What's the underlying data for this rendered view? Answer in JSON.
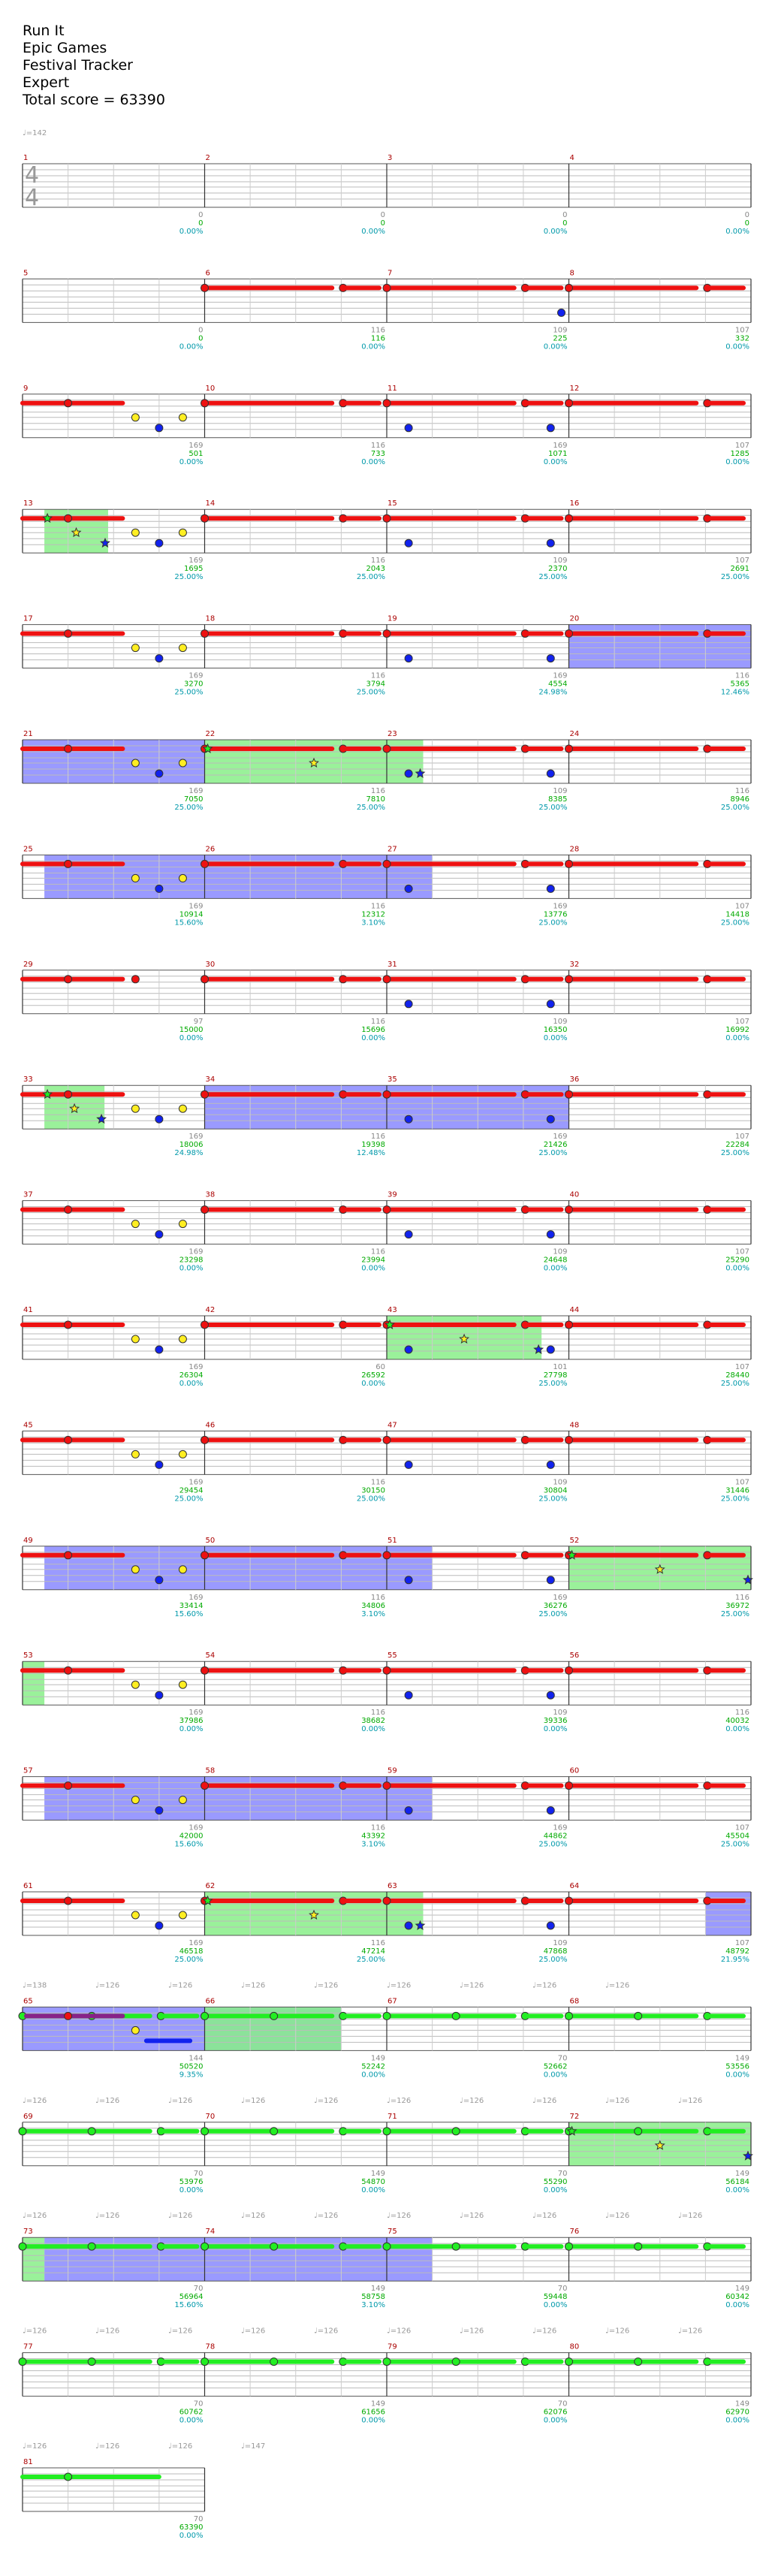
{
  "header": {
    "song": "Run It",
    "artist": "Epic Games",
    "app": "Festival Tracker",
    "difficulty": "Expert",
    "total_score": "Total score = 63390"
  },
  "initial_tempo": "♩=142",
  "time_signature": {
    "top": "4",
    "bottom": "4"
  },
  "colors": {
    "lane_red": "#ee1111",
    "lane_green": "#22ee22",
    "note_yellow": "#ffee22",
    "note_blue": "#1122ee",
    "overdrive_fill": "#88ee88",
    "solo_fill": "#8888ff",
    "measure_number": "#aa0000",
    "score_text": "#00aa00",
    "percent_text": "#0099aa",
    "tempo_text": "#999999"
  },
  "rows": [
    {
      "measures": [
        "1",
        "2",
        "3",
        "4"
      ],
      "notes": [
        "0",
        "0",
        "0",
        "0"
      ],
      "scores": [
        "0",
        "0",
        "0",
        "0"
      ],
      "pcts": [
        "0.00%",
        "0.00%",
        "0.00%",
        "0.00%"
      ]
    },
    {
      "measures": [
        "5",
        "6",
        "7",
        "8"
      ],
      "notes": [
        "0",
        "116",
        "109",
        "107"
      ],
      "scores": [
        "0",
        "116",
        "225",
        "332"
      ],
      "pcts": [
        "0.00%",
        "0.00%",
        "0.00%",
        "0.00%"
      ]
    },
    {
      "measures": [
        "9",
        "10",
        "11",
        "12"
      ],
      "notes": [
        "169",
        "116",
        "169",
        "107"
      ],
      "scores": [
        "501",
        "733",
        "1071",
        "1285"
      ],
      "pcts": [
        "0.00%",
        "0.00%",
        "0.00%",
        "0.00%"
      ]
    },
    {
      "measures": [
        "13",
        "14",
        "15",
        "16"
      ],
      "notes": [
        "169",
        "116",
        "109",
        "107"
      ],
      "scores": [
        "1695",
        "2043",
        "2370",
        "2691"
      ],
      "pcts": [
        "25.00%",
        "25.00%",
        "25.00%",
        "25.00%"
      ]
    },
    {
      "measures": [
        "17",
        "18",
        "19",
        "20"
      ],
      "notes": [
        "169",
        "116",
        "169",
        "116"
      ],
      "scores": [
        "3270",
        "3794",
        "4554",
        "5365"
      ],
      "pcts": [
        "25.00%",
        "25.00%",
        "24.98%",
        "12.46%"
      ]
    },
    {
      "measures": [
        "21",
        "22",
        "23",
        "24"
      ],
      "notes": [
        "169",
        "116",
        "109",
        "116"
      ],
      "scores": [
        "7050",
        "7810",
        "8385",
        "8946"
      ],
      "pcts": [
        "25.00%",
        "25.00%",
        "25.00%",
        "25.00%"
      ]
    },
    {
      "measures": [
        "25",
        "26",
        "27",
        "28"
      ],
      "notes": [
        "169",
        "116",
        "169",
        "107"
      ],
      "scores": [
        "10914",
        "12312",
        "13776",
        "14418"
      ],
      "pcts": [
        "15.60%",
        "3.10%",
        "25.00%",
        "25.00%"
      ]
    },
    {
      "measures": [
        "29",
        "30",
        "31",
        "32"
      ],
      "notes": [
        "97",
        "116",
        "109",
        "107"
      ],
      "scores": [
        "15000",
        "15696",
        "16350",
        "16992"
      ],
      "pcts": [
        "0.00%",
        "0.00%",
        "0.00%",
        "0.00%"
      ]
    },
    {
      "measures": [
        "33",
        "34",
        "35",
        "36"
      ],
      "notes": [
        "169",
        "116",
        "169",
        "107"
      ],
      "scores": [
        "18006",
        "19398",
        "21426",
        "22284"
      ],
      "pcts": [
        "24.98%",
        "12.48%",
        "25.00%",
        "25.00%"
      ]
    },
    {
      "measures": [
        "37",
        "38",
        "39",
        "40"
      ],
      "notes": [
        "169",
        "116",
        "109",
        "107"
      ],
      "scores": [
        "23298",
        "23994",
        "24648",
        "25290"
      ],
      "pcts": [
        "0.00%",
        "0.00%",
        "0.00%",
        "0.00%"
      ]
    },
    {
      "measures": [
        "41",
        "42",
        "43",
        "44"
      ],
      "notes": [
        "169",
        "60",
        "101",
        "107"
      ],
      "scores": [
        "26304",
        "26592",
        "27798",
        "28440"
      ],
      "pcts": [
        "0.00%",
        "0.00%",
        "25.00%",
        "25.00%"
      ]
    },
    {
      "measures": [
        "45",
        "46",
        "47",
        "48"
      ],
      "notes": [
        "169",
        "116",
        "109",
        "107"
      ],
      "scores": [
        "29454",
        "30150",
        "30804",
        "31446"
      ],
      "pcts": [
        "25.00%",
        "25.00%",
        "25.00%",
        "25.00%"
      ]
    },
    {
      "measures": [
        "49",
        "50",
        "51",
        "52"
      ],
      "notes": [
        "169",
        "116",
        "169",
        "116"
      ],
      "scores": [
        "33414",
        "34806",
        "36276",
        "36972"
      ],
      "pcts": [
        "15.60%",
        "3.10%",
        "25.00%",
        "25.00%"
      ]
    },
    {
      "measures": [
        "53",
        "54",
        "55",
        "56"
      ],
      "notes": [
        "169",
        "116",
        "109",
        "116"
      ],
      "scores": [
        "37986",
        "38682",
        "39336",
        "40032"
      ],
      "pcts": [
        "0.00%",
        "0.00%",
        "0.00%",
        "0.00%"
      ]
    },
    {
      "measures": [
        "57",
        "58",
        "59",
        "60"
      ],
      "notes": [
        "169",
        "116",
        "169",
        "107"
      ],
      "scores": [
        "42000",
        "43392",
        "44862",
        "45504"
      ],
      "pcts": [
        "15.60%",
        "3.10%",
        "25.00%",
        "25.00%"
      ]
    },
    {
      "measures": [
        "61",
        "62",
        "63",
        "64"
      ],
      "notes": [
        "169",
        "116",
        "109",
        "107"
      ],
      "scores": [
        "46518",
        "47214",
        "47868",
        "48792"
      ],
      "pcts": [
        "25.00%",
        "25.00%",
        "25.00%",
        "21.95%"
      ]
    },
    {
      "measures": [
        "65",
        "66",
        "67",
        "68"
      ],
      "notes": [
        "144",
        "149",
        "70",
        "149"
      ],
      "scores": [
        "50520",
        "52242",
        "52662",
        "53556"
      ],
      "pcts": [
        "9.35%",
        "0.00%",
        "0.00%",
        "0.00%"
      ]
    },
    {
      "measures": [
        "69",
        "70",
        "71",
        "72"
      ],
      "notes": [
        "70",
        "149",
        "70",
        "149"
      ],
      "scores": [
        "53976",
        "54870",
        "55290",
        "56184"
      ],
      "pcts": [
        "0.00%",
        "0.00%",
        "0.00%",
        "0.00%"
      ]
    },
    {
      "measures": [
        "73",
        "74",
        "75",
        "76"
      ],
      "notes": [
        "70",
        "149",
        "70",
        "149"
      ],
      "scores": [
        "56964",
        "58758",
        "59448",
        "60342"
      ],
      "pcts": [
        "15.60%",
        "3.10%",
        "0.00%",
        "0.00%"
      ]
    },
    {
      "measures": [
        "77",
        "78",
        "79",
        "80"
      ],
      "notes": [
        "70",
        "149",
        "70",
        "149"
      ],
      "scores": [
        "60762",
        "61656",
        "62076",
        "62970"
      ],
      "pcts": [
        "0.00%",
        "0.00%",
        "0.00%",
        "0.00%"
      ]
    },
    {
      "measures": [
        "81"
      ],
      "notes": [
        "70"
      ],
      "scores": [
        "63390"
      ],
      "pcts": [
        "0.00%"
      ]
    }
  ],
  "tempo_lines": [
    {
      "row": 16,
      "labels": [
        "♩=138",
        "♩=126",
        "♩=126",
        "♩=126",
        "♩=126",
        "♩=126",
        "♩=126",
        "♩=126",
        "♩=126"
      ]
    },
    {
      "row": 17,
      "labels": [
        "♩=126",
        "♩=126",
        "♩=126",
        "♩=126",
        "♩=126",
        "♩=126",
        "♩=126",
        "♩=126",
        "♩=126",
        "♩=126"
      ]
    },
    {
      "row": 18,
      "labels": [
        "♩=126",
        "♩=126",
        "♩=126",
        "♩=126",
        "♩=126",
        "♩=126",
        "♩=126",
        "♩=126",
        "♩=126",
        "♩=126"
      ]
    },
    {
      "row": 19,
      "labels": [
        "♩=126",
        "♩=126",
        "♩=126",
        "♩=126",
        "♩=126",
        "♩=126",
        "♩=126",
        "♩=126",
        "♩=126",
        "♩=126"
      ]
    },
    {
      "row": 20,
      "labels": [
        "♩=126",
        "♩=126",
        "♩=126",
        "♩=147"
      ]
    }
  ],
  "patterns": {
    "A": "main riff (blank start)",
    "B": "riff with chord hits and yellow/blue notes",
    "C": "sustain riff with blue note"
  },
  "row_styles": [
    {
      "type": "empty"
    },
    {
      "type": "intro"
    },
    {
      "type": "riff"
    },
    {
      "type": "riff",
      "od": [
        [
          0.12,
          0.47
        ]
      ],
      "stars": true
    },
    {
      "type": "riff",
      "solo": [
        [
          3.0,
          4.0
        ]
      ]
    },
    {
      "type": "riff",
      "solo": [
        [
          0.0,
          1.0
        ]
      ],
      "od": [
        [
          1.0,
          2.2
        ]
      ],
      "stars": true
    },
    {
      "type": "riff",
      "solo": [
        [
          0.12,
          2.25
        ]
      ]
    },
    {
      "type": "riff2"
    },
    {
      "type": "riff",
      "od": [
        [
          0.12,
          0.45
        ]
      ],
      "solo": [
        [
          1.0,
          3.0
        ]
      ],
      "stars": true
    },
    {
      "type": "riff"
    },
    {
      "type": "riff43",
      "od": [
        [
          2.0,
          2.85
        ]
      ],
      "stars": true
    },
    {
      "type": "riff"
    },
    {
      "type": "riff",
      "solo": [
        [
          0.12,
          2.25
        ]
      ],
      "od": [
        [
          3.0,
          4.0
        ]
      ],
      "stars": true
    },
    {
      "type": "riff",
      "od": [
        [
          0.0,
          0.12
        ]
      ]
    },
    {
      "type": "riff",
      "solo": [
        [
          0.12,
          2.25
        ]
      ]
    },
    {
      "type": "riff",
      "od": [
        [
          1.0,
          2.2
        ]
      ],
      "solo": [
        [
          3.75,
          4.0
        ]
      ],
      "stars": true
    },
    {
      "type": "green",
      "solo": [
        [
          0.0,
          1.75
        ]
      ],
      "od": [
        [
          1.0,
          1.75
        ]
      ],
      "lead": true
    },
    {
      "type": "green",
      "od": [
        [
          3.0,
          4.0
        ]
      ],
      "stars": true
    },
    {
      "type": "green",
      "od": [
        [
          0.0,
          0.12
        ]
      ],
      "solo": [
        [
          0.12,
          2.25
        ]
      ]
    },
    {
      "type": "green"
    },
    {
      "type": "green_short"
    }
  ]
}
